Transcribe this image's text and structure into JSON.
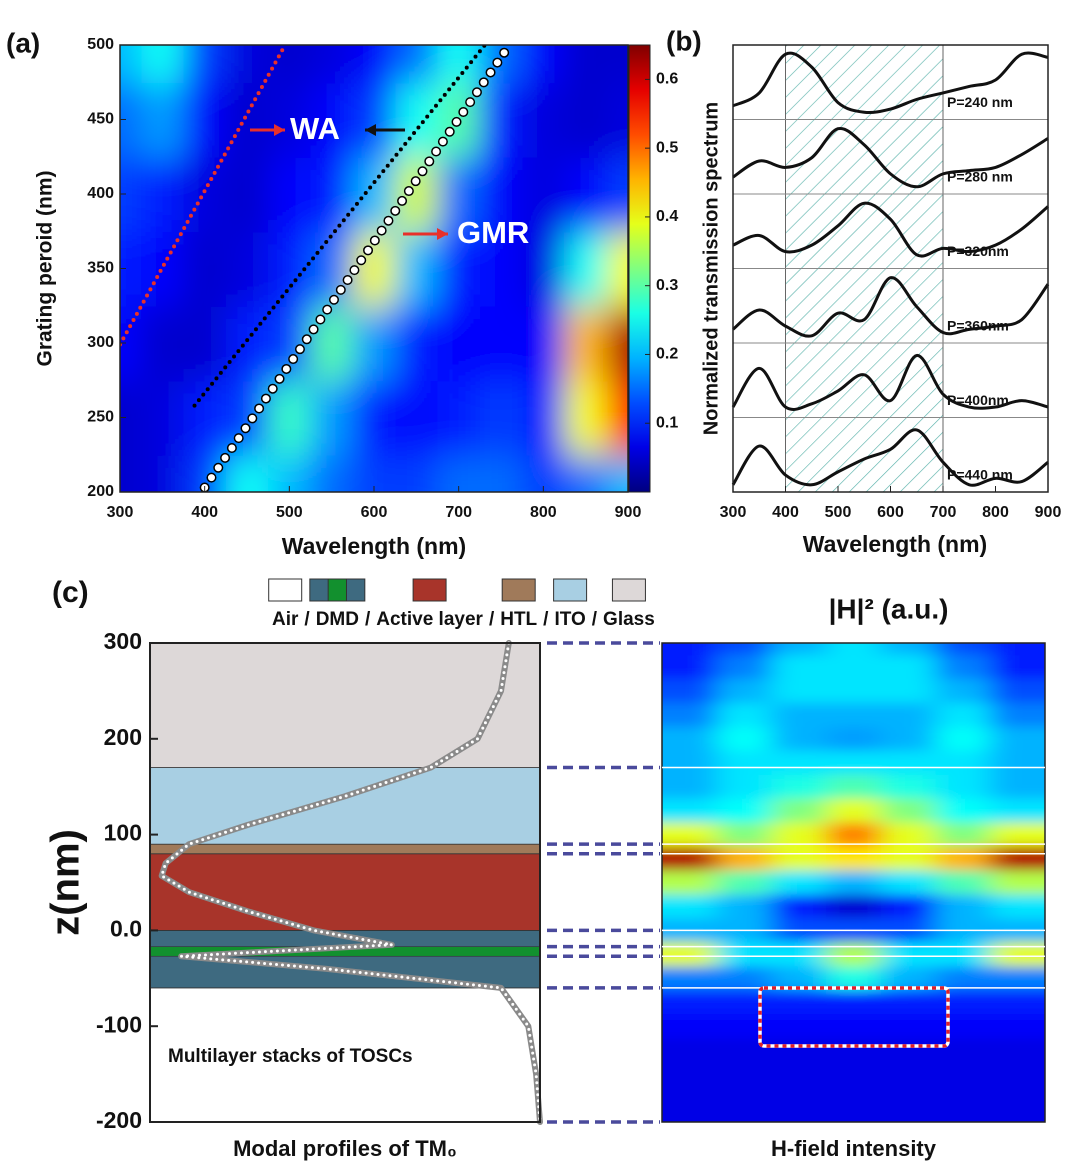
{
  "chart_data": [
    {
      "type": "heatmap",
      "panel_label": "(a)",
      "x_label": "Wavelength (nm)",
      "y_label": "Grating peroid (nm)",
      "x": [
        300,
        350,
        400,
        450,
        500,
        550,
        600,
        650,
        700,
        750,
        800,
        850,
        900
      ],
      "y": [
        200,
        250,
        300,
        350,
        400,
        450,
        500
      ],
      "z": [
        [
          0.05,
          0.06,
          0.12,
          0.25,
          0.2,
          0.15,
          0.12,
          0.12,
          0.15,
          0.15,
          0.12,
          0.15,
          0.2
        ],
        [
          0.05,
          0.06,
          0.1,
          0.12,
          0.28,
          0.18,
          0.1,
          0.08,
          0.1,
          0.12,
          0.1,
          0.4,
          0.55
        ],
        [
          0.08,
          0.05,
          0.05,
          0.1,
          0.12,
          0.3,
          0.18,
          0.1,
          0.08,
          0.08,
          0.08,
          0.45,
          0.62
        ],
        [
          0.1,
          0.08,
          0.05,
          0.06,
          0.1,
          0.15,
          0.4,
          0.2,
          0.1,
          0.08,
          0.06,
          0.25,
          0.4
        ],
        [
          0.12,
          0.1,
          0.06,
          0.05,
          0.08,
          0.1,
          0.2,
          0.38,
          0.15,
          0.08,
          0.06,
          0.08,
          0.12
        ],
        [
          0.15,
          0.18,
          0.08,
          0.05,
          0.06,
          0.08,
          0.12,
          0.25,
          0.3,
          0.1,
          0.06,
          0.05,
          0.06
        ],
        [
          0.2,
          0.25,
          0.12,
          0.06,
          0.05,
          0.06,
          0.08,
          0.15,
          0.25,
          0.15,
          0.08,
          0.05,
          0.05
        ]
      ],
      "xlim": [
        300,
        900
      ],
      "xticks": [
        300,
        400,
        500,
        600,
        700,
        800,
        900
      ],
      "ylim": [
        200,
        500
      ],
      "yticks": [
        200,
        250,
        300,
        350,
        400,
        450,
        500
      ],
      "clim": [
        0,
        0.65
      ],
      "cticks": [
        0.1,
        0.2,
        0.3,
        0.4,
        0.5,
        0.6
      ],
      "colormap": "jet",
      "lines": [
        {
          "x": [
            300,
            495
          ],
          "y": [
            299,
            500
          ],
          "color": "#e8302a",
          "style": "dotted"
        },
        {
          "x": [
            388,
            731
          ],
          "y": [
            258,
            500
          ],
          "color": "#000000",
          "style": "dotted"
        },
        {
          "x": [
            400,
            760
          ],
          "y": [
            203,
            500
          ],
          "color": "#ffffff",
          "style": "circles"
        }
      ],
      "annotations": [
        "WA",
        "GMR"
      ]
    },
    {
      "type": "line",
      "panel_label": "(b)",
      "x_label": "Wavelength (nm)",
      "y_label": "Normalized transmission spectrum",
      "x": [
        300,
        350,
        400,
        450,
        500,
        550,
        600,
        650,
        700,
        750,
        800,
        850,
        900
      ],
      "xlim": [
        300,
        900
      ],
      "xticks": [
        300,
        400,
        500,
        600,
        700,
        800,
        900
      ],
      "ylim": [
        0,
        1
      ],
      "shaded_region": [
        400,
        700
      ],
      "series": [
        {
          "name": "P=240 nm",
          "color": "#111111",
          "values": [
            0.15,
            0.35,
            0.95,
            0.75,
            0.2,
            0.05,
            0.1,
            0.25,
            0.35,
            0.45,
            0.55,
            0.95,
            0.9
          ]
        },
        {
          "name": "P=280 nm",
          "color": "#111111",
          "values": [
            0.2,
            0.45,
            0.35,
            0.5,
            0.95,
            0.7,
            0.25,
            0.05,
            0.25,
            0.3,
            0.35,
            0.55,
            0.8
          ]
        },
        {
          "name": "P=320nm",
          "color": "#111111",
          "values": [
            0.3,
            0.45,
            0.2,
            0.3,
            0.6,
            0.95,
            0.7,
            0.15,
            0.25,
            0.2,
            0.3,
            0.55,
            0.9
          ]
        },
        {
          "name": "P=360nm",
          "color": "#111111",
          "values": [
            0.15,
            0.45,
            0.2,
            0.05,
            0.4,
            0.3,
            0.95,
            0.5,
            0.1,
            0.15,
            0.2,
            0.3,
            0.85
          ]
        },
        {
          "name": "P=400nm",
          "color": "#111111",
          "values": [
            0.1,
            0.7,
            0.1,
            0.15,
            0.35,
            0.6,
            0.2,
            0.9,
            0.3,
            0.1,
            0.1,
            0.2,
            0.1
          ]
        },
        {
          "name": "P=440 nm",
          "color": "#111111",
          "values": [
            0.05,
            0.65,
            0.2,
            0.05,
            0.25,
            0.45,
            0.6,
            0.9,
            0.4,
            0.05,
            0.15,
            0.1,
            0.4
          ]
        }
      ]
    },
    {
      "type": "layers",
      "panel_label": "(c)",
      "y_label": "z(nm)",
      "x_label": "Modal profiles of TM₀",
      "annotation": "Multilayer stacks of TOSCs",
      "legend_separator": "/",
      "ylim": [
        -200,
        300
      ],
      "yticks": [
        300,
        200,
        100,
        {
          "value": 0,
          "label": "0.0"
        },
        -100,
        -200
      ],
      "layers": [
        {
          "name": "Air",
          "from": -200,
          "to": -60,
          "color": "#ffffff"
        },
        {
          "name": "DMD",
          "from": -60,
          "to": 0,
          "color": "#3e6a80",
          "insert": {
            "from": -27,
            "to": -17,
            "color": "#12902e"
          }
        },
        {
          "name": "Active layer",
          "from": 0,
          "to": 80,
          "color": "#a8342a"
        },
        {
          "name": "HTL",
          "from": 80,
          "to": 90,
          "color": "#a07a5a"
        },
        {
          "name": "ITO",
          "from": 90,
          "to": 170,
          "color": "#a8cfe3"
        },
        {
          "name": "Glass",
          "from": 170,
          "to": 300,
          "color": "#ddd8d8"
        }
      ],
      "profile": {
        "xlim": [
          0,
          1
        ],
        "z": [
          300,
          250,
          200,
          170,
          140,
          110,
          90,
          70,
          57,
          40,
          20,
          0,
          -15,
          -27,
          -40,
          -60,
          -100,
          -150,
          -200
        ],
        "values": [
          0.92,
          0.9,
          0.84,
          0.72,
          0.5,
          0.25,
          0.1,
          0.04,
          0.03,
          0.1,
          0.25,
          0.42,
          0.62,
          0.08,
          0.45,
          0.9,
          0.97,
          0.99,
          1.0
        ]
      }
    },
    {
      "type": "heatmap",
      "title": "|H|² (a.u.)",
      "x_label": "H-field intensity",
      "colormap": "jet",
      "clim": [
        0,
        1
      ],
      "ylim": [
        -200,
        300
      ],
      "y": [
        300,
        275,
        250,
        225,
        200,
        175,
        150,
        125,
        100,
        75,
        50,
        25,
        0,
        -25,
        -50,
        -75,
        -100,
        -125,
        -150,
        -175,
        -200
      ],
      "z": [
        [
          0.15,
          0.2,
          0.3,
          0.35,
          0.3,
          0.2,
          0.15
        ],
        [
          0.15,
          0.25,
          0.35,
          0.35,
          0.35,
          0.25,
          0.15
        ],
        [
          0.2,
          0.3,
          0.35,
          0.35,
          0.35,
          0.3,
          0.2
        ],
        [
          0.25,
          0.35,
          0.3,
          0.3,
          0.3,
          0.35,
          0.25
        ],
        [
          0.3,
          0.38,
          0.3,
          0.28,
          0.3,
          0.38,
          0.3
        ],
        [
          0.3,
          0.35,
          0.35,
          0.35,
          0.35,
          0.35,
          0.3
        ],
        [
          0.3,
          0.35,
          0.4,
          0.45,
          0.4,
          0.35,
          0.3
        ],
        [
          0.35,
          0.38,
          0.5,
          0.6,
          0.5,
          0.38,
          0.35
        ],
        [
          0.6,
          0.5,
          0.6,
          0.75,
          0.6,
          0.5,
          0.6
        ],
        [
          0.95,
          0.7,
          0.6,
          0.65,
          0.6,
          0.7,
          0.95
        ],
        [
          0.55,
          0.45,
          0.35,
          0.3,
          0.35,
          0.45,
          0.55
        ],
        [
          0.35,
          0.3,
          0.15,
          0.08,
          0.15,
          0.3,
          0.35
        ],
        [
          0.3,
          0.3,
          0.2,
          0.2,
          0.2,
          0.3,
          0.3
        ],
        [
          0.6,
          0.35,
          0.35,
          0.55,
          0.35,
          0.35,
          0.6
        ],
        [
          0.25,
          0.25,
          0.3,
          0.4,
          0.3,
          0.25,
          0.25
        ],
        [
          0.15,
          0.15,
          0.15,
          0.15,
          0.15,
          0.15,
          0.15
        ],
        [
          0.12,
          0.12,
          0.12,
          0.12,
          0.12,
          0.12,
          0.12
        ],
        [
          0.1,
          0.1,
          0.1,
          0.1,
          0.1,
          0.1,
          0.1
        ],
        [
          0.1,
          0.1,
          0.1,
          0.1,
          0.1,
          0.1,
          0.1
        ],
        [
          0.1,
          0.1,
          0.1,
          0.1,
          0.1,
          0.1,
          0.1
        ],
        [
          0.1,
          0.1,
          0.1,
          0.1,
          0.1,
          0.1,
          0.1
        ]
      ]
    }
  ]
}
